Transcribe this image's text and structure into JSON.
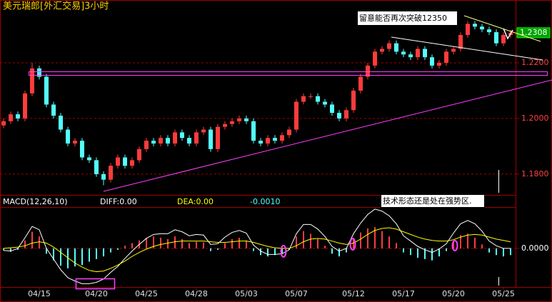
{
  "chart_data": [
    {
      "type": "candlestick",
      "title": "美元瑞郎[外汇交易]3小时",
      "up_color": "#ff3c3c",
      "down_color": "#54ffff",
      "ylim": [
        1.1733,
        1.24
      ],
      "yticks": [
        {
          "value": 1.18,
          "label": "1.1800"
        },
        {
          "value": 1.2,
          "label": "1.2000"
        },
        {
          "value": 1.22,
          "label": "1.2200"
        }
      ],
      "grid": true,
      "last_price": {
        "value": 1.2308,
        "label": "1.2308"
      },
      "annotations": [
        "留意能否再次突破12350"
      ],
      "open": [
        1.1975,
        1.199,
        1.2015,
        1.2,
        1.209,
        1.218,
        1.215,
        1.205,
        1.201,
        1.196,
        1.191,
        1.192,
        1.186,
        1.185,
        1.18,
        1.178,
        1.183,
        1.186,
        1.183,
        1.185,
        1.189,
        1.192,
        1.191,
        1.193,
        1.191,
        1.195,
        1.193,
        1.191,
        1.195,
        1.196,
        1.189,
        1.197,
        1.198,
        1.199,
        1.2,
        1.199,
        1.192,
        1.191,
        1.193,
        1.192,
        1.194,
        1.196,
        1.206,
        1.208,
        1.208,
        1.206,
        1.205,
        1.202,
        1.2,
        1.203,
        1.21,
        1.215,
        1.219,
        1.224,
        1.225,
        1.227,
        1.224,
        1.223,
        1.222,
        1.225,
        1.222,
        1.219,
        1.22,
        1.224,
        1.225,
        1.23,
        1.234,
        1.233,
        1.232,
        1.231,
        1.227,
        1.23
      ],
      "high": [
        1.2,
        1.2025,
        1.2025,
        1.21,
        1.22,
        1.219,
        1.216,
        1.206,
        1.202,
        1.197,
        1.193,
        1.193,
        1.187,
        1.186,
        1.181,
        1.184,
        1.187,
        1.187,
        1.186,
        1.19,
        1.193,
        1.193,
        1.194,
        1.194,
        1.196,
        1.196,
        1.194,
        1.196,
        1.197,
        1.197,
        1.198,
        1.199,
        1.2,
        1.201,
        1.201,
        1.2,
        1.193,
        1.194,
        1.194,
        1.195,
        1.197,
        1.207,
        1.209,
        1.209,
        1.209,
        1.207,
        1.206,
        1.203,
        1.204,
        1.211,
        1.216,
        1.22,
        1.225,
        1.226,
        1.228,
        1.228,
        1.225,
        1.224,
        1.226,
        1.226,
        1.223,
        1.221,
        1.225,
        1.226,
        1.231,
        1.235,
        1.235,
        1.234,
        1.233,
        1.232,
        1.231,
        1.2318
      ],
      "low": [
        1.1965,
        1.198,
        1.199,
        1.199,
        1.208,
        1.214,
        1.204,
        1.2,
        1.195,
        1.19,
        1.19,
        1.185,
        1.184,
        1.179,
        1.176,
        1.177,
        1.182,
        1.182,
        1.182,
        1.184,
        1.188,
        1.19,
        1.19,
        1.19,
        1.19,
        1.192,
        1.19,
        1.19,
        1.194,
        1.188,
        1.188,
        1.196,
        1.197,
        1.198,
        1.198,
        1.191,
        1.19,
        1.19,
        1.191,
        1.191,
        1.193,
        1.195,
        1.205,
        1.207,
        1.205,
        1.204,
        1.201,
        1.199,
        1.199,
        1.202,
        1.209,
        1.214,
        1.218,
        1.223,
        1.224,
        1.223,
        1.222,
        1.221,
        1.221,
        1.221,
        1.218,
        1.218,
        1.219,
        1.223,
        1.224,
        1.229,
        1.232,
        1.231,
        1.23,
        1.226,
        1.226,
        1.229
      ],
      "close": [
        1.199,
        1.2015,
        1.2,
        1.209,
        1.218,
        1.215,
        1.205,
        1.201,
        1.196,
        1.191,
        1.192,
        1.186,
        1.185,
        1.18,
        1.178,
        1.183,
        1.186,
        1.183,
        1.185,
        1.189,
        1.192,
        1.191,
        1.193,
        1.191,
        1.195,
        1.193,
        1.191,
        1.195,
        1.196,
        1.189,
        1.197,
        1.198,
        1.199,
        1.2,
        1.199,
        1.192,
        1.191,
        1.193,
        1.192,
        1.194,
        1.196,
        1.206,
        1.208,
        1.208,
        1.206,
        1.205,
        1.202,
        1.2,
        1.203,
        1.21,
        1.215,
        1.219,
        1.224,
        1.225,
        1.227,
        1.224,
        1.223,
        1.222,
        1.225,
        1.222,
        1.219,
        1.22,
        1.224,
        1.225,
        1.23,
        1.234,
        1.233,
        1.232,
        1.231,
        1.227,
        1.23,
        1.2308
      ]
    },
    {
      "type": "macd",
      "title": "MACD(12,26,10)",
      "readouts": [
        {
          "text": "DIFF:0.00",
          "color": "#ffffff"
        },
        {
          "text": "DEA:0.00",
          "color": "#ffff00"
        },
        {
          "text": "-0.0010",
          "color": "#54ffff"
        }
      ],
      "annotations": [
        "技术形态还是处在强势区."
      ],
      "up_color": "#ff3c3c",
      "down_color": "#54ffff",
      "ylim": [
        -0.0058,
        0.006
      ],
      "yticks": [
        {
          "value": 0,
          "label": "0.0000"
        }
      ],
      "grid": true,
      "categories": [
        null,
        null,
        null,
        null,
        null,
        "04/15",
        null,
        null,
        null,
        null,
        null,
        null,
        null,
        "04/20",
        null,
        null,
        null,
        null,
        null,
        null,
        "04/25",
        null,
        null,
        null,
        null,
        null,
        null,
        "04/28",
        null,
        null,
        null,
        null,
        null,
        null,
        "05/03",
        null,
        null,
        null,
        null,
        null,
        null,
        "05/07",
        null,
        null,
        null,
        null,
        null,
        null,
        null,
        "05/12",
        null,
        null,
        null,
        null,
        null,
        null,
        "05/17",
        null,
        null,
        null,
        null,
        null,
        null,
        "05/20",
        null,
        null,
        null,
        null,
        null,
        null,
        "05/25",
        null
      ],
      "values": [
        -0.0003,
        -0.0005,
        -0.0002,
        0.0012,
        0.0025,
        0.0018,
        -0.0008,
        -0.0018,
        -0.0026,
        -0.003,
        -0.0027,
        -0.0025,
        -0.002,
        -0.0016,
        -0.0012,
        -0.0006,
        -0.0002,
        0.0004,
        0.0008,
        0.0012,
        0.0016,
        0.0018,
        0.0016,
        0.0014,
        0.0018,
        0.0014,
        0.0008,
        0.001,
        0.0009,
        -0.0004,
        -0.0002,
        0.0008,
        0.0014,
        0.0016,
        0.0012,
        -0.0004,
        -0.001,
        -0.0012,
        -0.001,
        -0.0008,
        -0.0002,
        0.0018,
        0.0026,
        0.0022,
        0.0014,
        0.0004,
        -0.0008,
        -0.0012,
        -0.0006,
        0.0014,
        0.0024,
        0.003,
        0.0032,
        0.0026,
        0.0018,
        0.0008,
        -0.0006,
        -0.001,
        -0.0014,
        -0.0016,
        -0.0018,
        -0.0012,
        -0.0004,
        0.001,
        0.002,
        0.0022,
        0.0016,
        0.0006,
        -0.0006,
        -0.001,
        -0.0012,
        -0.001
      ],
      "series": [
        {
          "color": "#ffffff",
          "values": [
            -0.0003,
            -0.0004,
            0.0,
            0.0016,
            0.0033,
            0.0028,
            0.0,
            -0.0016,
            -0.0032,
            -0.0044,
            -0.0049,
            -0.0053,
            -0.0053,
            -0.0051,
            -0.0046,
            -0.0036,
            -0.0027,
            -0.0015,
            -0.0004,
            0.0006,
            0.0015,
            0.0021,
            0.0022,
            0.0022,
            0.0028,
            0.0025,
            0.0019,
            0.0021,
            0.002,
            0.0006,
            0.0007,
            0.0017,
            0.0024,
            0.0027,
            0.0023,
            0.0005,
            -0.0004,
            -0.0009,
            -0.0009,
            -0.0008,
            -0.0002,
            0.0022,
            0.0036,
            0.0036,
            0.0029,
            0.0018,
            0.0003,
            -0.0004,
            0.0,
            0.0022,
            0.0038,
            0.0051,
            0.0059,
            0.0056,
            0.0049,
            0.0037,
            0.0019,
            0.0011,
            0.0003,
            -0.0002,
            -0.0006,
            -0.0001,
            0.0007,
            0.0023,
            0.0037,
            0.0042,
            0.0037,
            0.0026,
            0.0011,
            0.0004,
            0.0,
            0.0
          ]
        },
        {
          "color": "#ffff00",
          "values": [
            0.0,
            0.0001,
            0.0002,
            0.0004,
            0.0008,
            0.001,
            0.0008,
            0.0002,
            -0.0006,
            -0.0014,
            -0.0022,
            -0.0028,
            -0.0033,
            -0.0035,
            -0.0034,
            -0.003,
            -0.0025,
            -0.0019,
            -0.0012,
            -0.0006,
            -0.0001,
            0.0003,
            0.0006,
            0.0008,
            0.001,
            0.0011,
            0.0011,
            0.0011,
            0.0011,
            0.001,
            0.0009,
            0.0009,
            0.001,
            0.0011,
            0.0011,
            0.0009,
            0.0006,
            0.0003,
            0.0001,
            0.0,
            0.0,
            0.0004,
            0.001,
            0.0014,
            0.0015,
            0.0014,
            0.0011,
            0.0008,
            0.0006,
            0.0008,
            0.0014,
            0.0021,
            0.0027,
            0.003,
            0.0031,
            0.0029,
            0.0025,
            0.0021,
            0.0017,
            0.0014,
            0.0012,
            0.0011,
            0.0011,
            0.0013,
            0.0017,
            0.002,
            0.0021,
            0.002,
            0.0017,
            0.0014,
            0.0012,
            0.001
          ]
        }
      ]
    }
  ]
}
